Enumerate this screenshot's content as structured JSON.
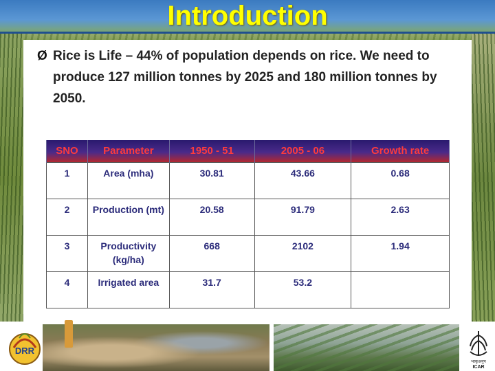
{
  "slide": {
    "title": "Introduction",
    "bullet_marker": "Ø",
    "bullet": "Rice is Life – 44% of population depends on rice. We need to produce 127 million tonnes by 2025 and 180 million tonnes by 2050."
  },
  "table": {
    "headers": [
      "SNO",
      "Parameter",
      "1950 - 51",
      "2005 - 06",
      "Growth rate"
    ],
    "rows": [
      {
        "sno": "1",
        "parameter": "Area (mha)",
        "y1950": "30.81",
        "y2005": "43.66",
        "growth": "0.68"
      },
      {
        "sno": "2",
        "parameter": "Production (mt)",
        "y1950": "20.58",
        "y2005": "91.79",
        "growth": "2.63"
      },
      {
        "sno": "3",
        "parameter": "Productivity (kg/ha)",
        "y1950": "668",
        "y2005": "2102",
        "growth": "1.94"
      },
      {
        "sno": "4",
        "parameter": "Irrigated area",
        "y1950": "31.7",
        "y2005": "53.2",
        "growth": ""
      }
    ]
  },
  "logos": {
    "left": "DRR",
    "right": "ICAR",
    "right_hindi": "भाकृअनुप"
  },
  "colors": {
    "title": "#ffff00",
    "header_text": "#ff3b3b",
    "cell_text": "#2b2b7a"
  }
}
